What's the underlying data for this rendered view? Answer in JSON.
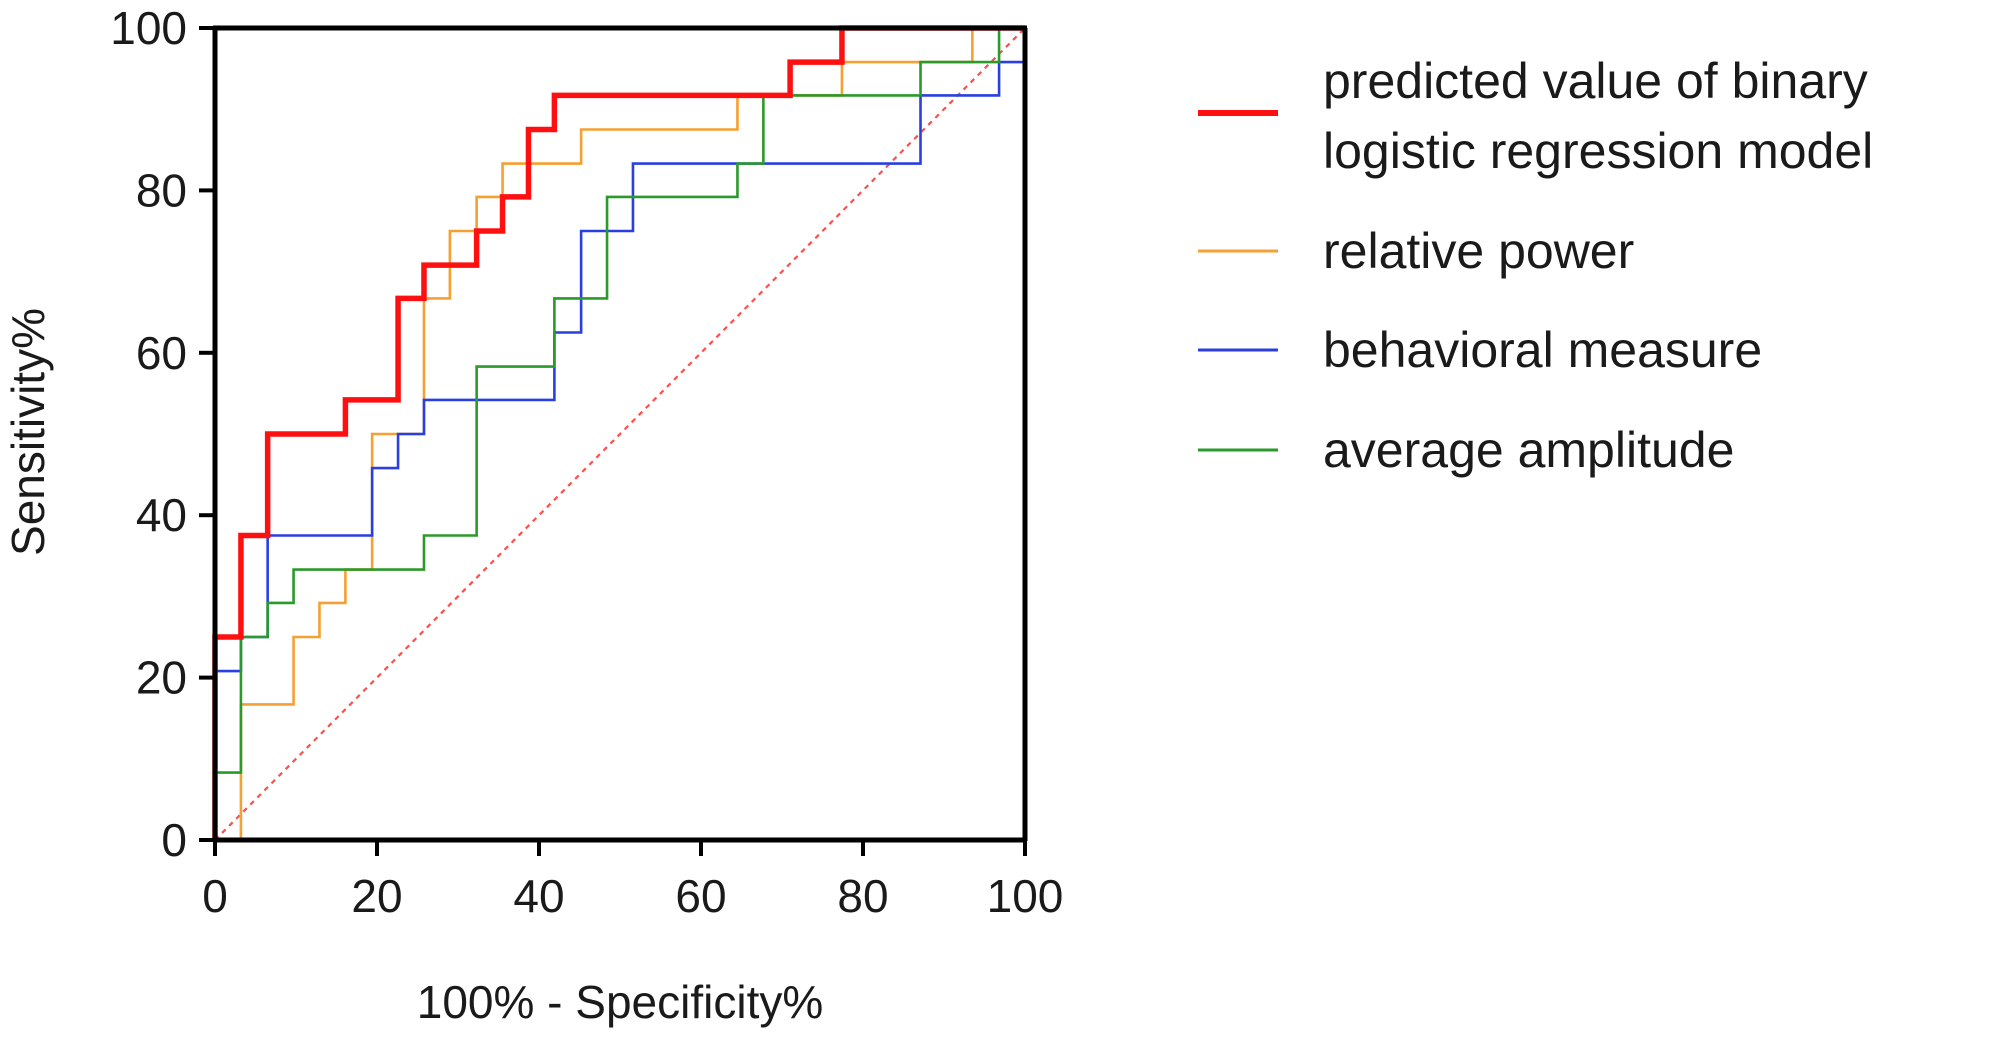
{
  "chart_data": {
    "type": "line",
    "title": "",
    "xlabel": "100% - Specificity%",
    "ylabel": "Sensitivity%",
    "xlim": [
      0,
      100
    ],
    "ylim": [
      0,
      100
    ],
    "xticks": [
      "0",
      "20",
      "40",
      "60",
      "80",
      "100"
    ],
    "yticks": [
      "0",
      "20",
      "40",
      "60",
      "80",
      "100"
    ],
    "grid": false,
    "legend_position": "right",
    "reference_line": {
      "name": "reference",
      "x": [
        0,
        100
      ],
      "y": [
        0,
        100
      ],
      "color": "#ff4d4d",
      "style": "dotted"
    },
    "series": [
      {
        "name": "predicted value of binary logistic regression model",
        "legend_lines": [
          "predicted value of binary",
          "logistic regression model"
        ],
        "color": "#ff1010",
        "emphasis": true,
        "x": [
          0,
          0,
          3.2,
          3.2,
          6.5,
          6.5,
          16.1,
          16.1,
          22.6,
          22.6,
          25.8,
          25.8,
          32.3,
          32.3,
          35.5,
          35.5,
          38.7,
          38.7,
          41.9,
          41.9,
          71.0,
          71.0,
          77.4,
          77.4,
          100
        ],
        "y": [
          0,
          25,
          25,
          37.5,
          37.5,
          50,
          50,
          54.2,
          54.2,
          66.7,
          66.7,
          70.8,
          70.8,
          75,
          75,
          79.2,
          79.2,
          87.5,
          87.5,
          91.7,
          91.7,
          95.8,
          95.8,
          100,
          100
        ]
      },
      {
        "name": "relative power",
        "legend_lines": [
          "relative power"
        ],
        "color": "#f5a030",
        "emphasis": false,
        "x": [
          0,
          3.2,
          3.2,
          9.7,
          9.7,
          12.9,
          12.9,
          16.1,
          16.1,
          19.4,
          19.4,
          25.8,
          25.8,
          29.0,
          29.0,
          32.3,
          32.3,
          35.5,
          35.5,
          45.2,
          45.2,
          64.5,
          64.5,
          77.4,
          77.4,
          93.5,
          93.5,
          96.8,
          96.8,
          100
        ],
        "y": [
          0,
          0,
          16.7,
          16.7,
          25,
          25,
          29.2,
          29.2,
          33.3,
          33.3,
          50,
          50,
          66.7,
          66.7,
          75,
          75,
          79.2,
          79.2,
          83.3,
          83.3,
          87.5,
          87.5,
          91.7,
          91.7,
          95.8,
          95.8,
          100,
          100,
          100,
          100
        ]
      },
      {
        "name": "behavioral measure",
        "legend_lines": [
          "behavioral measure"
        ],
        "color": "#2a3fe0",
        "emphasis": false,
        "x": [
          0,
          0,
          3.2,
          3.2,
          6.5,
          6.5,
          19.4,
          19.4,
          22.6,
          22.6,
          25.8,
          25.8,
          41.9,
          41.9,
          45.2,
          45.2,
          51.6,
          51.6,
          87.1,
          87.1,
          96.8,
          96.8,
          100,
          100
        ],
        "y": [
          0,
          20.8,
          20.8,
          25,
          25,
          37.5,
          37.5,
          45.8,
          45.8,
          50,
          50,
          54.2,
          54.2,
          62.5,
          62.5,
          75,
          75,
          83.3,
          83.3,
          91.7,
          91.7,
          95.8,
          95.8,
          100
        ]
      },
      {
        "name": "average amplitude",
        "legend_lines": [
          "average amplitude"
        ],
        "color": "#2a9a2a",
        "emphasis": false,
        "x": [
          0,
          0,
          3.2,
          3.2,
          6.5,
          6.5,
          9.7,
          9.7,
          25.8,
          25.8,
          32.3,
          32.3,
          41.9,
          41.9,
          48.4,
          48.4,
          64.5,
          64.5,
          67.7,
          67.7,
          87.1,
          87.1,
          96.8,
          96.8,
          100
        ],
        "y": [
          0,
          8.3,
          8.3,
          25,
          25,
          29.2,
          29.2,
          33.3,
          33.3,
          37.5,
          37.5,
          58.3,
          58.3,
          66.7,
          66.7,
          79.2,
          79.2,
          83.3,
          83.3,
          91.7,
          91.7,
          95.8,
          95.8,
          100,
          100
        ]
      }
    ]
  }
}
